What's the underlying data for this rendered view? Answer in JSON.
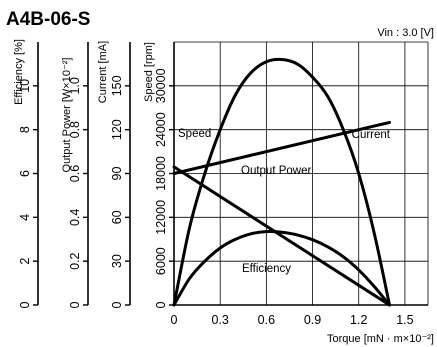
{
  "chart_data": {
    "type": "line",
    "title": "A4B-06-S",
    "note": "Vin : 3.0 [V]",
    "xlabel": "Torque [mN · m×10⁻²]",
    "x_ticks": [
      "0",
      "0.3",
      "0.6",
      "0.9",
      "1.2",
      "1.5"
    ],
    "xlim": [
      0,
      1.65
    ],
    "y_axes": [
      {
        "key": "efficiency",
        "label": "Efficiency [%]",
        "ticks": [
          "0",
          "2",
          "4",
          "6",
          "8",
          "10"
        ],
        "lim": [
          0,
          12
        ]
      },
      {
        "key": "output",
        "label": "Output Power [W×10⁻²]",
        "ticks": [
          "0",
          "0.2",
          "0.4",
          "0.6",
          "0.8",
          "1.0"
        ],
        "lim": [
          0,
          1.2
        ]
      },
      {
        "key": "current",
        "label": "Current [mA]",
        "ticks": [
          "0",
          "30",
          "60",
          "90",
          "120",
          "150"
        ],
        "lim": [
          0,
          180
        ]
      },
      {
        "key": "speed",
        "label": "Speed [rpm]",
        "ticks": [
          "0",
          "6000",
          "12000",
          "18000",
          "24000",
          "30000"
        ],
        "lim": [
          0,
          36000
        ]
      }
    ],
    "series": [
      {
        "name": "Speed",
        "axis": "speed",
        "x": [
          0,
          1.4
        ],
        "y": [
          18900,
          0
        ]
      },
      {
        "name": "Current",
        "axis": "current",
        "x": [
          0,
          1.4
        ],
        "y": [
          90,
          125
        ]
      },
      {
        "name": "Output Power",
        "axis": "output",
        "x": [
          0,
          0.1,
          0.2,
          0.3,
          0.4,
          0.5,
          0.6,
          0.7,
          0.8,
          0.9,
          1.0,
          1.1,
          1.2,
          1.3,
          1.4
        ],
        "y": [
          0,
          0.35,
          0.6,
          0.8,
          0.96,
          1.06,
          1.11,
          1.12,
          1.1,
          1.04,
          0.95,
          0.8,
          0.6,
          0.33,
          0
        ]
      },
      {
        "name": "Efficiency",
        "axis": "efficiency",
        "x": [
          0,
          0.1,
          0.2,
          0.3,
          0.4,
          0.5,
          0.6,
          0.7,
          0.8,
          0.9,
          1.0,
          1.1,
          1.2,
          1.3,
          1.4
        ],
        "y": [
          0,
          1.2,
          2.0,
          2.6,
          3.0,
          3.25,
          3.35,
          3.32,
          3.2,
          2.98,
          2.65,
          2.2,
          1.6,
          0.85,
          0
        ]
      }
    ],
    "grid": true
  }
}
